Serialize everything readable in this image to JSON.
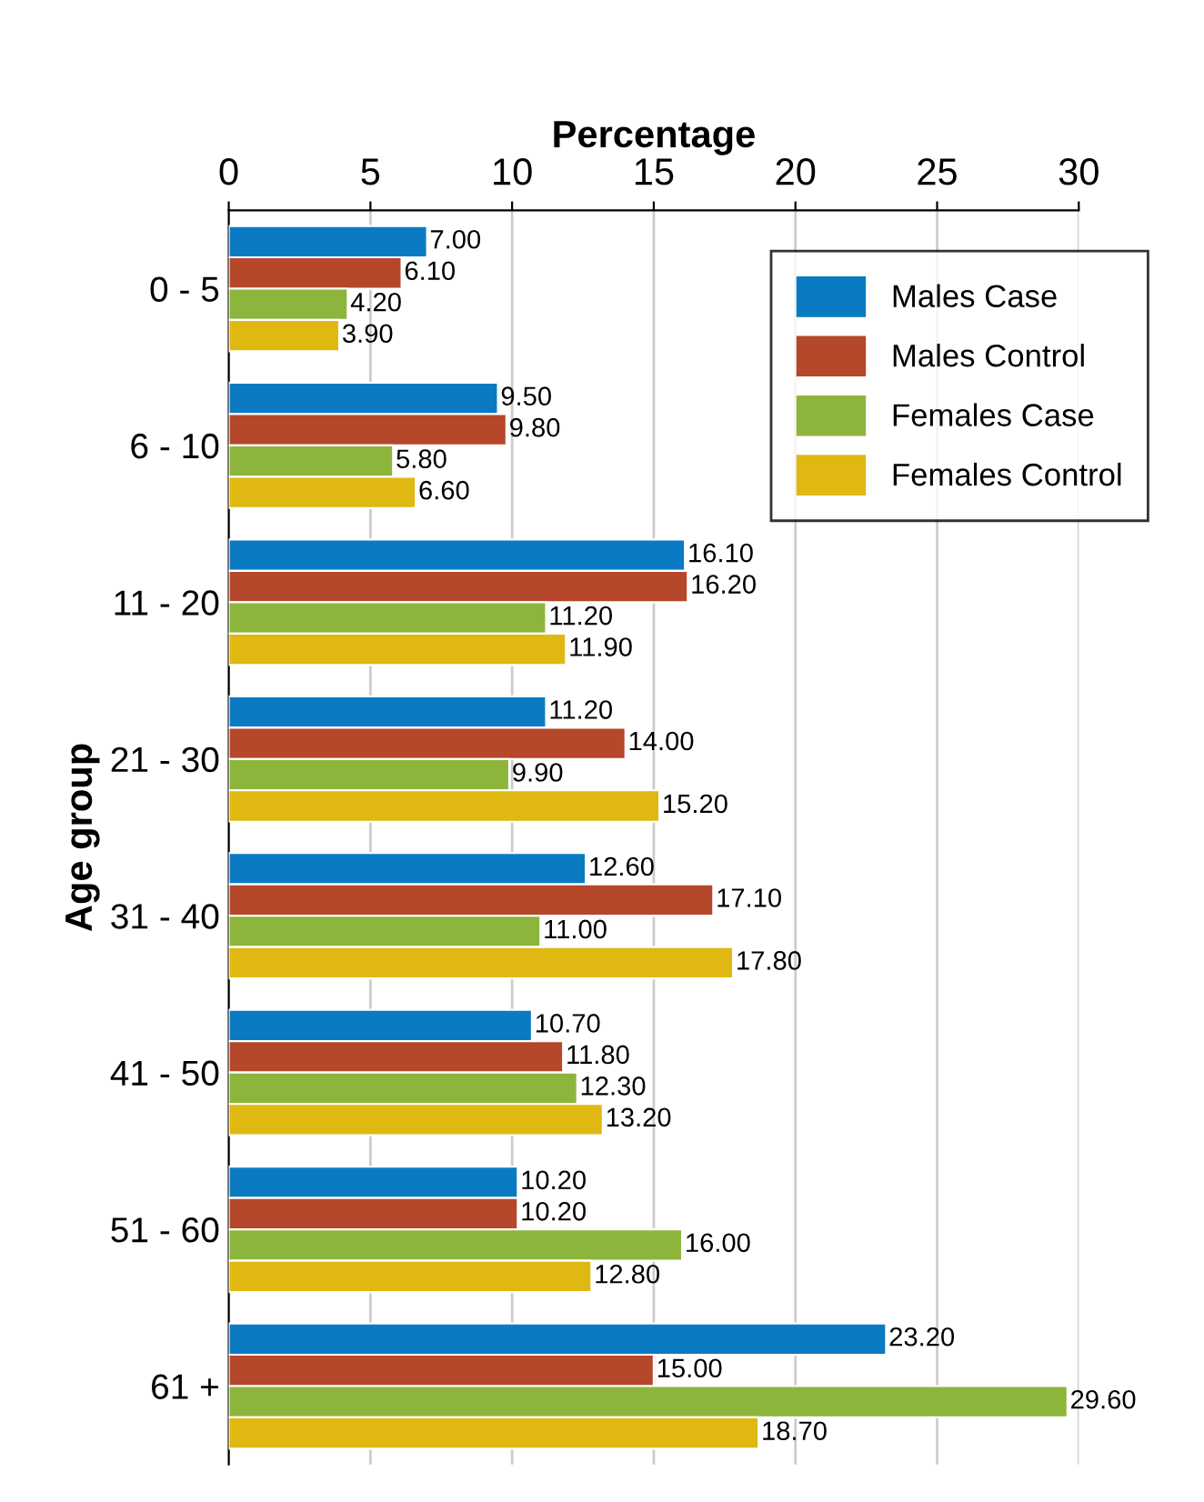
{
  "chart_data": {
    "type": "bar",
    "orientation": "horizontal",
    "xlabel": "Percentage",
    "ylabel": "Age group",
    "categories": [
      "0 - 5",
      "6 - 10",
      "11 - 20",
      "21 - 30",
      "31 - 40",
      "41 - 50",
      "51 - 60",
      "61 +"
    ],
    "series": [
      {
        "name": "Males Case",
        "color": "#0a7bc2",
        "values": [
          7.0,
          9.5,
          16.1,
          11.2,
          12.6,
          10.7,
          10.2,
          23.2
        ],
        "value_labels": [
          "7.00",
          "9.50",
          "16.10",
          "11.20",
          "12.60",
          "10.70",
          "10.20",
          "23.20"
        ]
      },
      {
        "name": "Males Control",
        "color": "#b5472a",
        "values": [
          6.1,
          9.8,
          16.2,
          14.0,
          17.1,
          11.8,
          10.2,
          15.0
        ],
        "value_labels": [
          "6.10",
          "9.80",
          "16.20",
          "14.00",
          "17.10",
          "11.80",
          "10.20",
          "15.00"
        ]
      },
      {
        "name": "Females Case",
        "color": "#8db53c",
        "values": [
          4.2,
          5.8,
          11.2,
          9.9,
          11.0,
          12.3,
          16.0,
          29.6
        ],
        "value_labels": [
          "4.20",
          "5.80",
          "11.20",
          "9.90",
          "11.00",
          "12.30",
          "16.00",
          "29.60"
        ]
      },
      {
        "name": "Females Control",
        "color": "#e0b812",
        "values": [
          3.9,
          6.6,
          11.9,
          15.2,
          17.8,
          13.2,
          12.8,
          18.7
        ],
        "value_labels": [
          "3.90",
          "6.60",
          "11.90",
          "15.20",
          "17.80",
          "13.20",
          "12.80",
          "18.70"
        ]
      }
    ],
    "xlim": [
      0,
      30
    ],
    "xticks": [
      0,
      5,
      10,
      15,
      20,
      25,
      30
    ],
    "grid": "x",
    "legend": "top right"
  }
}
